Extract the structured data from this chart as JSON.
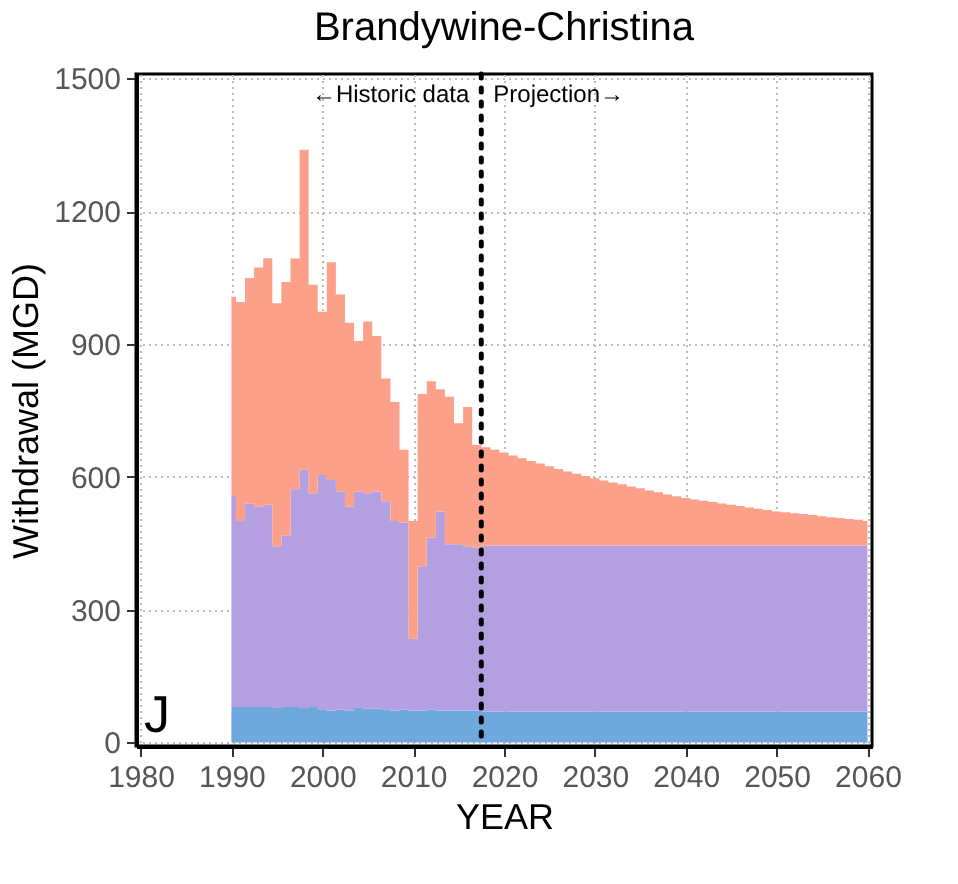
{
  "chart_data": {
    "type": "area",
    "stacked": true,
    "title": "Brandywine-Christina",
    "xlabel": "YEAR",
    "ylabel": "Withdrawal (MGD)",
    "x": [
      1990,
      1991,
      1992,
      1993,
      1994,
      1995,
      1996,
      1997,
      1998,
      1999,
      2000,
      2001,
      2002,
      2003,
      2004,
      2005,
      2006,
      2007,
      2008,
      2009,
      2010,
      2011,
      2012,
      2013,
      2014,
      2015,
      2016,
      2017,
      2018,
      2019,
      2020,
      2021,
      2022,
      2023,
      2024,
      2025,
      2026,
      2027,
      2028,
      2029,
      2030,
      2031,
      2032,
      2033,
      2034,
      2035,
      2036,
      2037,
      2038,
      2039,
      2040,
      2041,
      2042,
      2043,
      2044,
      2045,
      2046,
      2047,
      2048,
      2049,
      2050,
      2051,
      2052,
      2053,
      2054,
      2055,
      2056,
      2057,
      2058,
      2059,
      2060
    ],
    "series": [
      {
        "color": "#6fa8dc",
        "values": [
          80,
          80,
          80,
          80,
          80,
          78,
          80,
          80,
          78,
          80,
          75,
          72,
          74,
          72,
          78,
          76,
          76,
          75,
          72,
          74,
          72,
          72,
          74,
          72,
          72,
          72,
          72,
          72,
          70,
          70,
          70,
          70,
          70,
          70,
          70,
          70,
          70,
          70,
          70,
          70,
          70,
          70,
          70,
          70,
          70,
          70,
          70,
          70,
          70,
          70,
          70,
          70,
          70,
          70,
          70,
          70,
          70,
          70,
          70,
          70,
          70,
          70,
          70,
          70,
          70,
          70,
          70,
          70,
          70,
          70,
          70
        ]
      },
      {
        "color": "#b4a0e0",
        "values": [
          477,
          420,
          460,
          453,
          457,
          365,
          387,
          492,
          538,
          483,
          529,
          521,
          493,
          461,
          489,
          487,
          491,
          470,
          428,
          423,
          162,
          326,
          389,
          450,
          376,
          376,
          371,
          368,
          375,
          375,
          375,
          375,
          375,
          375,
          375,
          375,
          375,
          375,
          375,
          375,
          375,
          375,
          375,
          375,
          375,
          375,
          375,
          375,
          375,
          375,
          375,
          375,
          375,
          375,
          375,
          375,
          375,
          375,
          375,
          375,
          375,
          375,
          375,
          375,
          375,
          375,
          375,
          375,
          375,
          375,
          375
        ]
      },
      {
        "color": "#fca08a",
        "values": [
          450,
          495,
          509,
          540,
          557,
          549,
          573,
          521,
          723,
          471,
          369,
          492,
          445,
          415,
          340,
          388,
          351,
          277,
          269,
          164,
          266,
          389,
          353,
          276,
          333,
          273,
          315,
          232,
          222,
          216,
          210,
          203,
          197,
          191,
          185,
          179,
          173,
          167,
          162,
          157,
          152,
          147,
          142,
          138,
          133,
          129,
          124,
          120,
          115,
          111,
          107,
          104,
          101,
          98,
          95,
          92,
          89,
          86,
          83,
          80,
          77,
          75,
          73,
          71,
          69,
          66,
          64,
          62,
          60,
          58,
          55
        ]
      }
    ],
    "xlim": [
      1979.5,
      2060.5
    ],
    "xticks": [
      1980,
      1990,
      2000,
      2010,
      2020,
      2030,
      2040,
      2050,
      2060
    ],
    "ylim": [
      -8,
      1510
    ],
    "yticks": [
      0,
      300,
      600,
      900,
      1200,
      1500
    ],
    "grid": true,
    "ref_lines": [
      {
        "axis": "x",
        "value": 2017.5,
        "line_style": "dotted",
        "color": "#000000"
      }
    ],
    "annotations": [
      "←Historic data",
      "Projection→",
      "J"
    ]
  }
}
